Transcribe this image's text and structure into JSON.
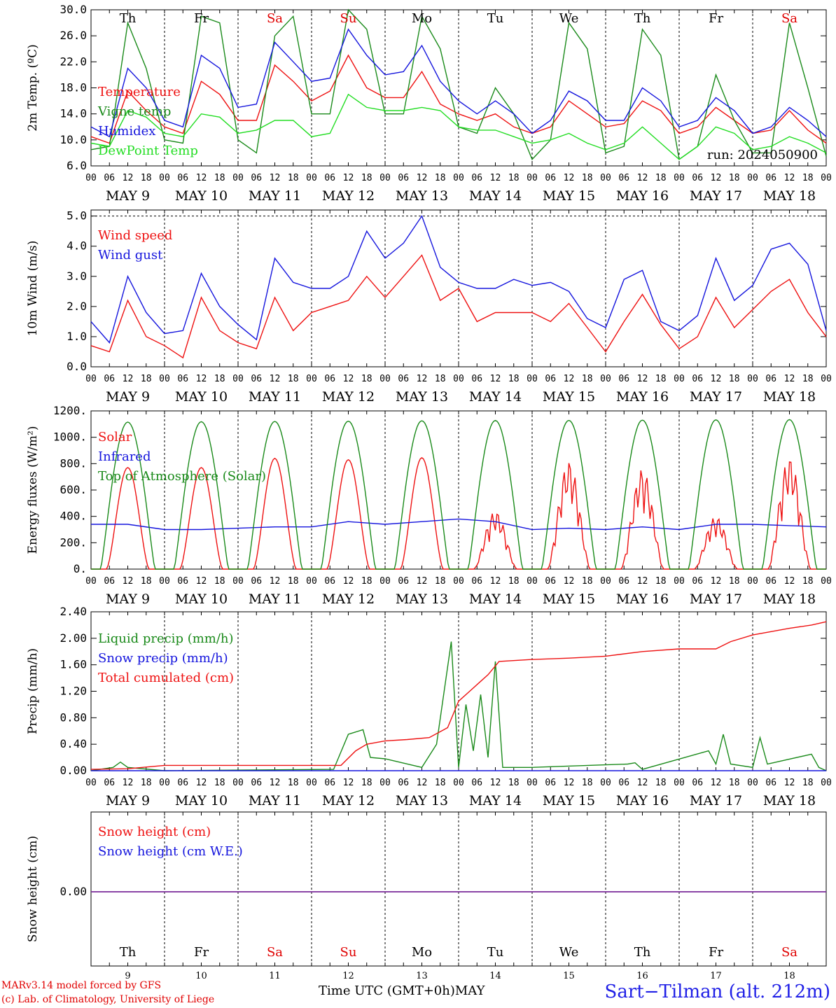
{
  "run_label": "run: 2024050900",
  "footer": {
    "model": "MARv3.14 model forced by GFS",
    "credit": "(c) Lab. of Climatology, University of Liege",
    "xlabel": "Time UTC (GMT+0h)",
    "month": "MAY",
    "station": "Sart−Tilman (alt. 212m)"
  },
  "days": {
    "dates": [
      "MAY  9",
      "MAY 10",
      "MAY 11",
      "MAY 12",
      "MAY 13",
      "MAY 14",
      "MAY 15",
      "MAY 16",
      "MAY 17",
      "MAY 18"
    ],
    "day_numbers": [
      "9",
      "10",
      "11",
      "12",
      "13",
      "14",
      "15",
      "16",
      "17",
      "18"
    ],
    "weekdays": [
      "Th",
      "Fr",
      "Sa",
      "Su",
      "Mo",
      "Tu",
      "We",
      "Th",
      "Fr",
      "Sa"
    ],
    "weekend_color": "#e00000",
    "weekday_color": "#000000",
    "weekend_flags": [
      false,
      false,
      true,
      true,
      false,
      false,
      false,
      false,
      false,
      true
    ],
    "hour_ticks": [
      "00",
      "06",
      "12",
      "18"
    ],
    "last_tick": "00"
  },
  "colors": {
    "red": "#ee1111",
    "green": "#1a8a1a",
    "blue": "#1515dd",
    "lightgreen": "#22dd22",
    "purple": "#7a2a9a"
  },
  "chart_data": [
    {
      "type": "line",
      "ylabel": "2m Temp. (ºC)",
      "ylim": [
        6,
        30
      ],
      "yticks": [
        "6.0",
        "10.0",
        "14.0",
        "18.0",
        "22.0",
        "26.0",
        "30.0"
      ],
      "ytick_values": [
        6,
        10,
        14,
        18,
        22,
        26,
        30
      ],
      "x_unit": "days from MAY 9 00 UTC",
      "xlim": [
        0,
        10
      ],
      "series": [
        {
          "name": "Temperature",
          "color": "#ee1111",
          "x": [
            0,
            0.25,
            0.5,
            0.75,
            1,
            1.25,
            1.5,
            1.75,
            2,
            2.25,
            2.5,
            2.75,
            3,
            3.25,
            3.5,
            3.75,
            4,
            4.25,
            4.5,
            4.75,
            5,
            5.25,
            5.5,
            5.75,
            6,
            6.25,
            6.5,
            6.75,
            7,
            7.25,
            7.5,
            7.75,
            8,
            8.25,
            8.5,
            8.75,
            9,
            9.25,
            9.5,
            9.75,
            10
          ],
          "values": [
            10.5,
            9.5,
            17.5,
            14.5,
            12,
            11,
            19,
            17,
            13,
            13,
            21.5,
            19,
            16,
            17.5,
            23,
            18,
            16.5,
            16.5,
            20.5,
            15.5,
            14,
            13,
            14,
            12,
            11,
            12,
            16,
            14,
            12,
            12.5,
            16,
            14.5,
            11,
            12,
            15,
            13,
            11,
            11.5,
            14.5,
            11.5,
            9.5
          ]
        },
        {
          "name": "Vigne temp",
          "color": "#1a8a1a",
          "x": [
            0,
            0.25,
            0.5,
            0.75,
            1,
            1.25,
            1.5,
            1.75,
            2,
            2.25,
            2.5,
            2.75,
            3,
            3.25,
            3.5,
            3.75,
            4,
            4.25,
            4.5,
            4.75,
            5,
            5.25,
            5.5,
            5.75,
            6,
            6.25,
            6.5,
            6.75,
            7,
            7.25,
            7.5,
            7.75,
            8,
            8.25,
            8.5,
            8.75,
            9,
            9.25,
            9.5,
            9.75,
            10
          ],
          "values": [
            8.5,
            9,
            28,
            21,
            10,
            9.5,
            29,
            28,
            10,
            8,
            26,
            29,
            14,
            14,
            30,
            27,
            14,
            14,
            29,
            24,
            12,
            11,
            18,
            14,
            7,
            10,
            28,
            24,
            8,
            9,
            27,
            23,
            7,
            9,
            20,
            13,
            8,
            8,
            28,
            18,
            7.5
          ]
        },
        {
          "name": "Humidex",
          "color": "#1515dd",
          "x": [
            0,
            0.25,
            0.5,
            0.75,
            1,
            1.25,
            1.5,
            1.75,
            2,
            2.25,
            2.5,
            2.75,
            3,
            3.25,
            3.5,
            3.75,
            4,
            4.25,
            4.5,
            4.75,
            5,
            5.25,
            5.5,
            5.75,
            6,
            6.25,
            6.5,
            6.75,
            7,
            7.25,
            7.5,
            7.75,
            8,
            8.25,
            8.5,
            8.75,
            9,
            9.25,
            9.5,
            9.75,
            10
          ],
          "values": [
            12,
            10.5,
            21,
            18,
            13,
            12,
            23,
            21,
            15,
            15.5,
            25,
            22,
            19,
            19.5,
            27,
            23,
            20,
            20.5,
            24.5,
            19,
            16,
            14,
            16,
            14,
            11,
            13,
            17.5,
            16,
            13,
            13,
            18,
            16,
            12,
            13,
            16.5,
            14.5,
            11,
            12,
            15,
            13,
            10.5
          ]
        },
        {
          "name": "DewPoint Temp",
          "color": "#22dd22",
          "x": [
            0,
            0.25,
            0.5,
            0.75,
            1,
            1.25,
            1.5,
            1.75,
            2,
            2.25,
            2.5,
            2.75,
            3,
            3.25,
            3.5,
            3.75,
            4,
            4.25,
            4.5,
            4.75,
            5,
            5.25,
            5.5,
            5.75,
            6,
            6.25,
            6.5,
            6.75,
            7,
            7.25,
            7.5,
            7.75,
            8,
            8.25,
            8.5,
            8.75,
            9,
            9.25,
            9.5,
            9.75,
            10
          ],
          "values": [
            9.5,
            9,
            14.5,
            13.5,
            11,
            10.5,
            14,
            13.5,
            11,
            11.5,
            13,
            13,
            10.5,
            11,
            17,
            15,
            14.5,
            14.5,
            15,
            14.5,
            12,
            11.5,
            11.5,
            10.5,
            9.5,
            10,
            11,
            9.5,
            8.5,
            9.5,
            12,
            9.5,
            7,
            9,
            12,
            11,
            8.5,
            9,
            10.5,
            9.5,
            8
          ]
        }
      ],
      "legend": [
        "Temperature",
        "Vigne temp",
        "Humidex",
        "DewPoint Temp"
      ],
      "grid": "dashed"
    },
    {
      "type": "line",
      "ylabel": "10m Wind (m/s)",
      "ylim": [
        0,
        5.2
      ],
      "yticks": [
        "0.0",
        "1.0",
        "2.0",
        "3.0",
        "4.0",
        "5.0"
      ],
      "ytick_values": [
        0,
        1,
        2,
        3,
        4,
        5
      ],
      "x_unit": "days from MAY 9 00 UTC",
      "xlim": [
        0,
        10
      ],
      "series": [
        {
          "name": "Wind speed",
          "color": "#ee1111",
          "x": [
            0,
            0.25,
            0.5,
            0.75,
            1,
            1.25,
            1.5,
            1.75,
            2,
            2.25,
            2.5,
            2.75,
            3,
            3.25,
            3.5,
            3.75,
            4,
            4.25,
            4.5,
            4.75,
            5,
            5.25,
            5.5,
            5.75,
            6,
            6.25,
            6.5,
            6.75,
            7,
            7.25,
            7.5,
            7.75,
            8,
            8.25,
            8.5,
            8.75,
            9,
            9.25,
            9.5,
            9.75,
            10
          ],
          "values": [
            0.7,
            0.5,
            2.2,
            1.0,
            0.7,
            0.3,
            2.3,
            1.2,
            0.8,
            0.6,
            2.3,
            1.2,
            1.8,
            2.0,
            2.2,
            3.0,
            2.3,
            3.0,
            3.7,
            2.2,
            2.6,
            1.5,
            1.8,
            1.8,
            1.8,
            1.5,
            2.1,
            1.3,
            0.5,
            1.5,
            2.4,
            1.4,
            0.6,
            1.0,
            2.3,
            1.3,
            1.9,
            2.5,
            2.9,
            1.8,
            1.0
          ]
        },
        {
          "name": "Wind gust",
          "color": "#1515dd",
          "x": [
            0,
            0.25,
            0.5,
            0.75,
            1,
            1.25,
            1.5,
            1.75,
            2,
            2.25,
            2.5,
            2.75,
            3,
            3.25,
            3.5,
            3.75,
            4,
            4.25,
            4.5,
            4.75,
            5,
            5.25,
            5.5,
            5.75,
            6,
            6.25,
            6.5,
            6.75,
            7,
            7.25,
            7.5,
            7.75,
            8,
            8.25,
            8.5,
            8.75,
            9,
            9.25,
            9.5,
            9.75,
            10
          ],
          "values": [
            1.5,
            0.8,
            3.0,
            1.8,
            1.1,
            1.2,
            3.1,
            2.0,
            1.4,
            0.9,
            3.6,
            2.8,
            2.6,
            2.6,
            3.0,
            4.5,
            3.6,
            4.1,
            5.0,
            3.3,
            2.8,
            2.6,
            2.6,
            2.9,
            2.7,
            2.8,
            2.5,
            1.6,
            1.3,
            2.9,
            3.2,
            1.5,
            1.2,
            1.7,
            3.6,
            2.2,
            2.7,
            3.9,
            4.1,
            3.4,
            1.2
          ]
        }
      ],
      "legend": [
        "Wind speed",
        "Wind gust"
      ],
      "grid": "dashed"
    },
    {
      "type": "line",
      "ylabel": "Energy fluxes (W/m²)",
      "ylim": [
        0,
        1200
      ],
      "yticks": [
        "0.",
        "200.",
        "400.",
        "600.",
        "800.",
        "1000.",
        "1200."
      ],
      "ytick_values": [
        0,
        200,
        400,
        600,
        800,
        1000,
        1200
      ],
      "x_unit": "days from MAY 9 00 UTC",
      "xlim": [
        0,
        10
      ],
      "series": [
        {
          "name": "Solar",
          "color": "#ee1111",
          "peaks": [
            770,
            770,
            840,
            830,
            845,
            440,
            820,
            760,
            400,
            850
          ]
        },
        {
          "name": "Infrared",
          "color": "#1515dd",
          "x": [
            0,
            0.5,
            1,
            1.5,
            2,
            2.5,
            3,
            3.5,
            4,
            4.5,
            5,
            5.5,
            6,
            6.5,
            7,
            7.5,
            8,
            8.5,
            9,
            9.5,
            10
          ],
          "values": [
            340,
            340,
            300,
            300,
            310,
            320,
            320,
            360,
            340,
            360,
            380,
            360,
            300,
            310,
            300,
            320,
            300,
            340,
            340,
            330,
            320
          ]
        },
        {
          "name": "Top of Atmosphere (Solar)",
          "color": "#1a8a1a",
          "peaks": [
            1115,
            1118,
            1120,
            1122,
            1125,
            1127,
            1128,
            1130,
            1132,
            1134
          ]
        }
      ],
      "legend": [
        "Solar",
        "Infrared",
        "Top of Atmosphere (Solar)"
      ],
      "grid": "dashed"
    },
    {
      "type": "line",
      "ylabel": "Precip (mm/h)",
      "ylim": [
        0,
        2.4
      ],
      "yticks": [
        "0.00",
        "0.40",
        "0.80",
        "1.20",
        "1.60",
        "2.00",
        "2.40"
      ],
      "ytick_values": [
        0,
        0.4,
        0.8,
        1.2,
        1.6,
        2.0,
        2.4
      ],
      "x_unit": "days from MAY 9 00 UTC",
      "xlim": [
        0,
        10
      ],
      "series": [
        {
          "name": "Liquid precip (mm/h)",
          "color": "#1a8a1a",
          "x": [
            0,
            0.3,
            0.4,
            0.5,
            1,
            3.3,
            3.5,
            3.7,
            3.8,
            4.0,
            4.5,
            4.7,
            4.9,
            5.0,
            5.1,
            5.2,
            5.3,
            5.4,
            5.5,
            5.6,
            6,
            7.3,
            7.4,
            7.5,
            8.4,
            8.5,
            8.6,
            8.7,
            9.0,
            9.1,
            9.2,
            9.8,
            9.9,
            10
          ],
          "values": [
            0,
            0.05,
            0.13,
            0.05,
            0,
            0.02,
            0.55,
            0.62,
            0.2,
            0.18,
            0.05,
            0.4,
            1.95,
            0.05,
            1.0,
            0.3,
            1.15,
            0.2,
            1.65,
            0.05,
            0.05,
            0.1,
            0.12,
            0.02,
            0.3,
            0.1,
            0.55,
            0.1,
            0.05,
            0.5,
            0.1,
            0.25,
            0.05,
            0
          ]
        },
        {
          "name": "Snow precip (mm/h)",
          "color": "#1515dd",
          "x": [
            0,
            10
          ],
          "values": [
            0,
            0
          ]
        },
        {
          "name": "Total cumulated (cm)",
          "color": "#ee1111",
          "x": [
            0,
            0.5,
            1,
            3.4,
            3.6,
            3.75,
            4.0,
            4.3,
            4.6,
            4.85,
            5.0,
            5.15,
            5.3,
            5.4,
            5.55,
            6.0,
            6.5,
            7.0,
            7.5,
            8.0,
            8.5,
            8.7,
            9.0,
            9.5,
            9.8,
            10
          ],
          "values": [
            0.02,
            0.03,
            0.08,
            0.08,
            0.3,
            0.4,
            0.45,
            0.47,
            0.5,
            0.65,
            1.05,
            1.2,
            1.35,
            1.45,
            1.65,
            1.68,
            1.7,
            1.73,
            1.8,
            1.84,
            1.84,
            1.95,
            2.05,
            2.15,
            2.2,
            2.25
          ]
        }
      ],
      "legend": [
        "Liquid precip (mm/h)",
        "Snow precip (mm/h)",
        "Total cumulated (cm)"
      ],
      "grid": "dashed"
    },
    {
      "type": "line",
      "ylabel": "Snow height (cm)",
      "yticks": [
        "0.00"
      ],
      "x_unit": "days from MAY 9 00 UTC",
      "xlim": [
        0,
        10
      ],
      "series": [
        {
          "name": "Snow height (cm)",
          "color": "#ee1111",
          "x": [
            0,
            10
          ],
          "values": [
            0,
            0
          ]
        },
        {
          "name": "Snow height (cm W.E.)",
          "color": "#1515dd",
          "x": [
            0,
            10
          ],
          "values": [
            0,
            0
          ]
        }
      ],
      "legend": [
        "Snow height (cm)",
        "Snow height (cm W.E.)"
      ],
      "grid": "dashed"
    }
  ]
}
